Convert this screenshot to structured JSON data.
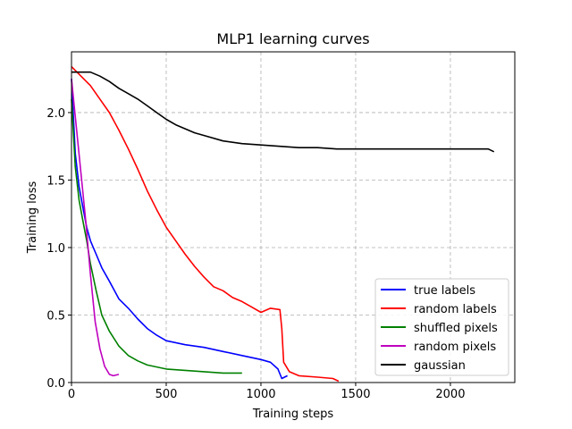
{
  "chart_data": {
    "type": "line",
    "title": "MLP1 learning curves",
    "xlabel": "Training steps",
    "ylabel": "Training loss",
    "xlim": [
      0,
      2340
    ],
    "ylim": [
      0,
      2.45
    ],
    "xticks": [
      0,
      500,
      1000,
      1500,
      2000
    ],
    "xtick_labels": [
      "0",
      "500",
      "1000",
      "1500",
      "2000"
    ],
    "yticks": [
      0,
      0.5,
      1.0,
      1.5,
      2.0
    ],
    "ytick_labels": [
      "0.0",
      "0.5",
      "1.0",
      "1.5",
      "2.0"
    ],
    "grid": true,
    "legend_position": "lower-right",
    "series": [
      {
        "name": "true labels",
        "color": "#0000ff",
        "points": [
          [
            0,
            2.25
          ],
          [
            20,
            1.7
          ],
          [
            40,
            1.45
          ],
          [
            60,
            1.3
          ],
          [
            80,
            1.15
          ],
          [
            100,
            1.05
          ],
          [
            130,
            0.95
          ],
          [
            160,
            0.85
          ],
          [
            200,
            0.75
          ],
          [
            250,
            0.62
          ],
          [
            300,
            0.55
          ],
          [
            350,
            0.47
          ],
          [
            400,
            0.4
          ],
          [
            450,
            0.35
          ],
          [
            500,
            0.31
          ],
          [
            600,
            0.28
          ],
          [
            700,
            0.26
          ],
          [
            800,
            0.23
          ],
          [
            900,
            0.2
          ],
          [
            1000,
            0.17
          ],
          [
            1050,
            0.15
          ],
          [
            1090,
            0.1
          ],
          [
            1110,
            0.03
          ],
          [
            1140,
            0.05
          ]
        ]
      },
      {
        "name": "random labels",
        "color": "#ff0000",
        "points": [
          [
            0,
            2.34
          ],
          [
            50,
            2.27
          ],
          [
            100,
            2.2
          ],
          [
            150,
            2.1
          ],
          [
            200,
            2.0
          ],
          [
            250,
            1.87
          ],
          [
            300,
            1.73
          ],
          [
            350,
            1.58
          ],
          [
            400,
            1.42
          ],
          [
            450,
            1.28
          ],
          [
            500,
            1.15
          ],
          [
            550,
            1.05
          ],
          [
            600,
            0.95
          ],
          [
            650,
            0.86
          ],
          [
            700,
            0.78
          ],
          [
            750,
            0.71
          ],
          [
            800,
            0.68
          ],
          [
            850,
            0.63
          ],
          [
            900,
            0.6
          ],
          [
            950,
            0.56
          ],
          [
            1000,
            0.52
          ],
          [
            1050,
            0.55
          ],
          [
            1100,
            0.54
          ],
          [
            1110,
            0.4
          ],
          [
            1120,
            0.15
          ],
          [
            1150,
            0.08
          ],
          [
            1200,
            0.05
          ],
          [
            1300,
            0.04
          ],
          [
            1380,
            0.03
          ],
          [
            1410,
            0.01
          ]
        ]
      },
      {
        "name": "shuffled pixels",
        "color": "#008000",
        "points": [
          [
            0,
            2.1
          ],
          [
            20,
            1.6
          ],
          [
            40,
            1.35
          ],
          [
            60,
            1.2
          ],
          [
            80,
            1.05
          ],
          [
            100,
            0.88
          ],
          [
            130,
            0.68
          ],
          [
            160,
            0.5
          ],
          [
            200,
            0.38
          ],
          [
            250,
            0.27
          ],
          [
            300,
            0.2
          ],
          [
            350,
            0.16
          ],
          [
            400,
            0.13
          ],
          [
            500,
            0.1
          ],
          [
            600,
            0.09
          ],
          [
            700,
            0.08
          ],
          [
            800,
            0.07
          ],
          [
            900,
            0.07
          ]
        ]
      },
      {
        "name": "random pixels",
        "color": "#bf00bf",
        "points": [
          [
            0,
            2.25
          ],
          [
            25,
            1.9
          ],
          [
            50,
            1.55
          ],
          [
            75,
            1.2
          ],
          [
            100,
            0.8
          ],
          [
            125,
            0.45
          ],
          [
            150,
            0.25
          ],
          [
            175,
            0.12
          ],
          [
            200,
            0.06
          ],
          [
            220,
            0.05
          ],
          [
            250,
            0.06
          ]
        ]
      },
      {
        "name": "gaussian",
        "color": "#000000",
        "points": [
          [
            0,
            2.3
          ],
          [
            50,
            2.3
          ],
          [
            100,
            2.3
          ],
          [
            150,
            2.27
          ],
          [
            200,
            2.23
          ],
          [
            250,
            2.18
          ],
          [
            300,
            2.14
          ],
          [
            350,
            2.1
          ],
          [
            400,
            2.05
          ],
          [
            450,
            2.0
          ],
          [
            500,
            1.95
          ],
          [
            550,
            1.91
          ],
          [
            600,
            1.88
          ],
          [
            650,
            1.85
          ],
          [
            700,
            1.83
          ],
          [
            800,
            1.79
          ],
          [
            900,
            1.77
          ],
          [
            1000,
            1.76
          ],
          [
            1100,
            1.75
          ],
          [
            1200,
            1.74
          ],
          [
            1300,
            1.74
          ],
          [
            1400,
            1.73
          ],
          [
            1500,
            1.73
          ],
          [
            1600,
            1.73
          ],
          [
            1700,
            1.73
          ],
          [
            1800,
            1.73
          ],
          [
            1900,
            1.73
          ],
          [
            2000,
            1.73
          ],
          [
            2100,
            1.73
          ],
          [
            2200,
            1.73
          ],
          [
            2230,
            1.71
          ]
        ]
      }
    ]
  }
}
